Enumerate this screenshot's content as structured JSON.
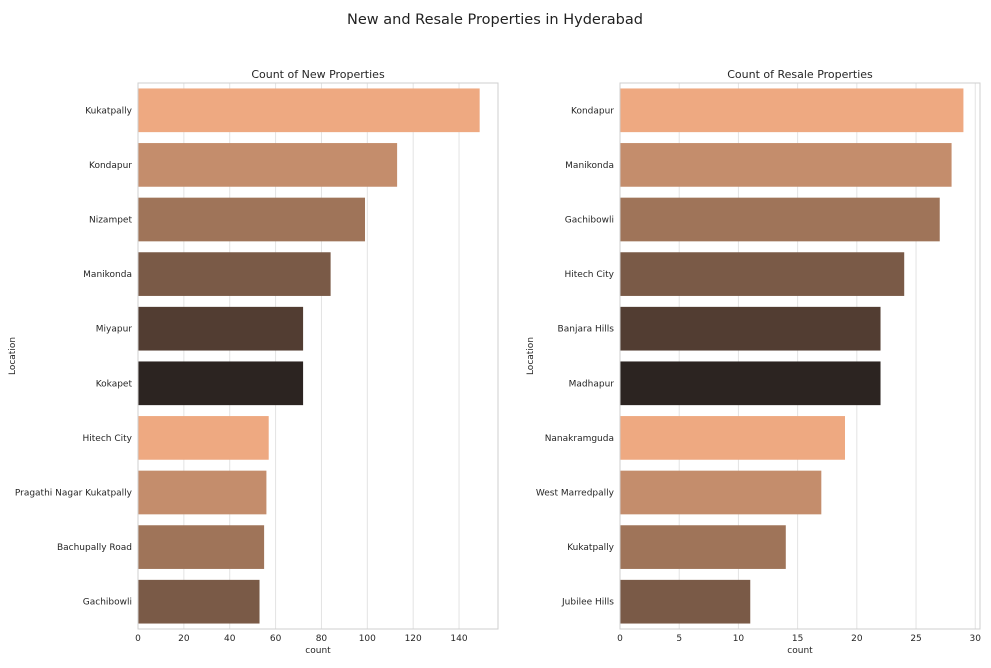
{
  "figure": {
    "title": "New and Resale Properties in Hyderabad"
  },
  "palette": [
    "#eea981",
    "#c48d6c",
    "#9f7459",
    "#7a5a47",
    "#523d32",
    "#2c2421"
  ],
  "chart_data": [
    {
      "type": "bar",
      "orientation": "horizontal",
      "title": "Count of New Properties",
      "xlabel": "count",
      "ylabel": "Location",
      "categories": [
        "Kukatpally",
        "Kondapur",
        "Nizampet",
        "Manikonda",
        "Miyapur",
        "Kokapet",
        "Hitech City",
        "Pragathi Nagar Kukatpally",
        "Bachupally Road",
        "Gachibowli"
      ],
      "values": [
        149,
        113,
        99,
        84,
        72,
        72,
        57,
        56,
        55,
        53
      ],
      "xlim": [
        0,
        157
      ],
      "xticks": [
        0,
        20,
        40,
        60,
        80,
        100,
        120,
        140
      ],
      "grid": true
    },
    {
      "type": "bar",
      "orientation": "horizontal",
      "title": "Count of Resale Properties",
      "xlabel": "count",
      "ylabel": "Location",
      "categories": [
        "Kondapur",
        "Manikonda",
        "Gachibowli",
        "Hitech City",
        "Banjara Hills",
        "Madhapur",
        "Nanakramguda",
        "West Marredpally",
        "Kukatpally",
        "Jubilee Hills"
      ],
      "values": [
        29,
        28,
        27,
        24,
        22,
        22,
        19,
        17,
        14,
        11
      ],
      "xlim": [
        0,
        30.4
      ],
      "xticks": [
        0,
        5,
        10,
        15,
        20,
        25,
        30
      ],
      "grid": true
    }
  ]
}
